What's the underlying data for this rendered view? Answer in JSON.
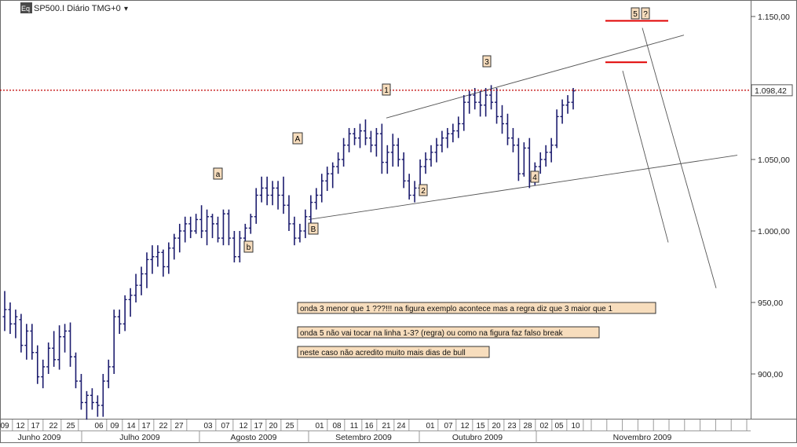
{
  "header": {
    "icon_text": "Eq",
    "symbol_label": "SP500.I Diário TMG+0",
    "dropdown_glyph": "▾"
  },
  "price_tag": "1.098,42",
  "colors": {
    "bars": "#1c1c6e",
    "price_line": "#c00000",
    "target_line": "#e00000",
    "trendline": "#555555",
    "label_bg": "#f7ddbd",
    "label_border": "#333333"
  },
  "wave_labels": [
    "1",
    "3",
    "5",
    "?",
    "A",
    "a",
    "b",
    "B",
    "2",
    "4"
  ],
  "annotations": [
    "onda 3 menor que 1 ???!!! na figura exemplo acontece mas a regra diz que 3 maior que 1",
    "onda 5 não vai tocar na linha 1-3? (regra) ou como na figura faz falso break",
    "neste caso não acredito muito mais dias de bull"
  ],
  "chart_data": {
    "type": "ohlc",
    "ylim": [
      855,
      1160
    ],
    "y_ticks": [
      "1.150,00",
      "1.100,00",
      "1.050,00",
      "1.000,00",
      "950,00",
      "900,00"
    ],
    "y_tick_values": [
      1150,
      1100,
      1050,
      1000,
      950,
      900
    ],
    "last_price": 1098.42,
    "x_day_labels": [
      "09",
      "12",
      "17",
      "22",
      "25",
      "06",
      "09",
      "14",
      "17",
      "22",
      "27",
      "03",
      "07",
      "12",
      "17",
      "20",
      "25",
      "01",
      "08",
      "11",
      "16",
      "21",
      "24",
      "01",
      "07",
      "12",
      "15",
      "20",
      "23",
      "28",
      "02",
      "05",
      "10"
    ],
    "x_month_labels": [
      "Junho 2009",
      "Julho 2009",
      "Agosto 2009",
      "Setembro 2009",
      "Outubro 2009",
      "Novembro 2009"
    ],
    "bars": [
      [
        940,
        958,
        930,
        945
      ],
      [
        945,
        950,
        928,
        935
      ],
      [
        935,
        945,
        925,
        940
      ],
      [
        938,
        942,
        915,
        920
      ],
      [
        920,
        935,
        910,
        930
      ],
      [
        930,
        935,
        910,
        915
      ],
      [
        915,
        920,
        893,
        898
      ],
      [
        898,
        910,
        890,
        905
      ],
      [
        905,
        922,
        900,
        918
      ],
      [
        918,
        930,
        905,
        910
      ],
      [
        910,
        934,
        903,
        926
      ],
      [
        926,
        935,
        915,
        930
      ],
      [
        930,
        936,
        905,
        912
      ],
      [
        912,
        915,
        890,
        895
      ],
      [
        895,
        900,
        875,
        880
      ],
      [
        880,
        888,
        868,
        885
      ],
      [
        885,
        890,
        875,
        880
      ],
      [
        880,
        885,
        870,
        878
      ],
      [
        878,
        900,
        870,
        895
      ],
      [
        895,
        910,
        890,
        905
      ],
      [
        905,
        945,
        900,
        940
      ],
      [
        940,
        945,
        928,
        935
      ],
      [
        935,
        955,
        930,
        952
      ],
      [
        952,
        960,
        940,
        955
      ],
      [
        955,
        970,
        950,
        962
      ],
      [
        962,
        975,
        955,
        970
      ],
      [
        970,
        985,
        960,
        980
      ],
      [
        980,
        990,
        970,
        982
      ],
      [
        982,
        990,
        975,
        985
      ],
      [
        985,
        987,
        968,
        975
      ],
      [
        975,
        992,
        970,
        988
      ],
      [
        988,
        998,
        980,
        995
      ],
      [
        995,
        1005,
        985,
        1000
      ],
      [
        1000,
        1010,
        992,
        1005
      ],
      [
        1005,
        1010,
        995,
        1000
      ],
      [
        1000,
        1012,
        998,
        1008
      ],
      [
        1008,
        1018,
        995,
        1000
      ],
      [
        1000,
        1015,
        990,
        1010
      ],
      [
        1010,
        1012,
        995,
        1005
      ],
      [
        1005,
        1010,
        992,
        995
      ],
      [
        995,
        1015,
        990,
        1012
      ],
      [
        1012,
        1015,
        990,
        995
      ],
      [
        995,
        1000,
        978,
        982
      ],
      [
        982,
        1000,
        978,
        995
      ],
      [
        995,
        1005,
        990,
        1002
      ],
      [
        1002,
        1012,
        998,
        1010
      ],
      [
        1010,
        1030,
        1005,
        1025
      ],
      [
        1025,
        1038,
        1020,
        1030
      ],
      [
        1030,
        1038,
        1018,
        1025
      ],
      [
        1025,
        1035,
        1018,
        1030
      ],
      [
        1030,
        1035,
        1015,
        1025
      ],
      [
        1025,
        1038,
        1012,
        1018
      ],
      [
        1018,
        1025,
        1000,
        1005
      ],
      [
        1005,
        1010,
        990,
        995
      ],
      [
        995,
        1005,
        992,
        1000
      ],
      [
        1000,
        1015,
        995,
        1010
      ],
      [
        1010,
        1025,
        1005,
        1020
      ],
      [
        1020,
        1030,
        1015,
        1025
      ],
      [
        1025,
        1040,
        1020,
        1035
      ],
      [
        1035,
        1045,
        1028,
        1040
      ],
      [
        1040,
        1048,
        1030,
        1045
      ],
      [
        1045,
        1055,
        1040,
        1050
      ],
      [
        1050,
        1065,
        1045,
        1060
      ],
      [
        1060,
        1072,
        1055,
        1068
      ],
      [
        1068,
        1072,
        1060,
        1065
      ],
      [
        1065,
        1075,
        1058,
        1070
      ],
      [
        1070,
        1078,
        1060,
        1065
      ],
      [
        1065,
        1070,
        1055,
        1060
      ],
      [
        1060,
        1072,
        1052,
        1068
      ],
      [
        1068,
        1075,
        1040,
        1048
      ],
      [
        1048,
        1060,
        1040,
        1055
      ],
      [
        1055,
        1068,
        1045,
        1060
      ],
      [
        1060,
        1065,
        1045,
        1050
      ],
      [
        1050,
        1055,
        1030,
        1035
      ],
      [
        1035,
        1040,
        1022,
        1025
      ],
      [
        1025,
        1035,
        1020,
        1030
      ],
      [
        1030,
        1050,
        1025,
        1045
      ],
      [
        1045,
        1055,
        1040,
        1050
      ],
      [
        1050,
        1060,
        1045,
        1055
      ],
      [
        1055,
        1065,
        1048,
        1060
      ],
      [
        1060,
        1070,
        1055,
        1065
      ],
      [
        1065,
        1072,
        1058,
        1068
      ],
      [
        1068,
        1075,
        1062,
        1070
      ],
      [
        1070,
        1080,
        1065,
        1075
      ],
      [
        1075,
        1095,
        1070,
        1090
      ],
      [
        1090,
        1098,
        1082,
        1095
      ],
      [
        1095,
        1100,
        1085,
        1090
      ],
      [
        1090,
        1098,
        1080,
        1088
      ],
      [
        1088,
        1100,
        1080,
        1095
      ],
      [
        1095,
        1102,
        1085,
        1090
      ],
      [
        1090,
        1100,
        1075,
        1080
      ],
      [
        1080,
        1088,
        1068,
        1075
      ],
      [
        1075,
        1082,
        1060,
        1065
      ],
      [
        1065,
        1072,
        1055,
        1060
      ],
      [
        1060,
        1065,
        1035,
        1040
      ],
      [
        1040,
        1062,
        1038,
        1058
      ],
      [
        1058,
        1065,
        1030,
        1035
      ],
      [
        1035,
        1048,
        1032,
        1045
      ],
      [
        1045,
        1055,
        1040,
        1050
      ],
      [
        1050,
        1060,
        1045,
        1055
      ],
      [
        1055,
        1065,
        1048,
        1060
      ],
      [
        1060,
        1085,
        1058,
        1080
      ],
      [
        1080,
        1092,
        1075,
        1088
      ],
      [
        1088,
        1095,
        1082,
        1090
      ],
      [
        1090,
        1100,
        1085,
        1098
      ]
    ],
    "trendlines": [
      {
        "x1": 492,
        "v1": 1079,
        "x2": 871,
        "v2": 1137
      },
      {
        "x1": 393,
        "v1": 1008,
        "x2": 939,
        "v2": 1053
      },
      {
        "x1": 793,
        "v1": 1112,
        "x2": 851,
        "v2": 992
      },
      {
        "x1": 818,
        "v1": 1142,
        "x2": 912,
        "v2": 960
      }
    ],
    "target_lines": [
      {
        "x1": 771,
        "x2": 851,
        "v": 1147
      },
      {
        "x1": 771,
        "x2": 824,
        "v": 1118
      }
    ]
  }
}
